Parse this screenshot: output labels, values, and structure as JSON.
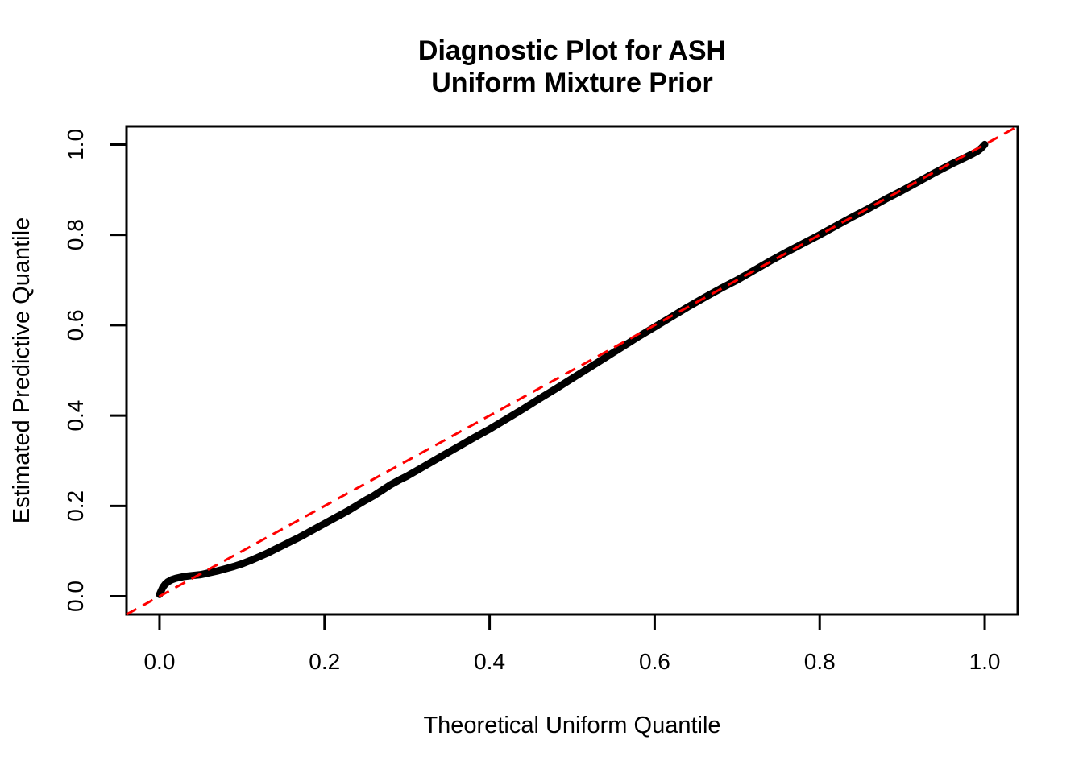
{
  "page": {
    "background_color": "#FFFFFF"
  },
  "chart_data": {
    "type": "scatter",
    "title_lines": [
      "Diagnostic Plot for ASH",
      "Uniform Mixture Prior"
    ],
    "xlabel": "Theoretical Uniform Quantile",
    "ylabel": "Estimated Predictive Quantile",
    "xlim": [
      -0.04,
      1.04
    ],
    "ylim": [
      -0.04,
      1.04
    ],
    "x_tick_values": [
      0.0,
      0.2,
      0.4,
      0.6,
      0.8,
      1.0
    ],
    "x_tick_labels": [
      "0.0",
      "0.2",
      "0.4",
      "0.6",
      "0.8",
      "1.0"
    ],
    "y_tick_values": [
      0.0,
      0.2,
      0.4,
      0.6,
      0.8,
      1.0
    ],
    "y_tick_labels": [
      "0.0",
      "0.2",
      "0.4",
      "0.6",
      "0.8",
      "1.0"
    ],
    "grid": false,
    "legend": "none",
    "series": [
      {
        "name": "estimated predictive quantile vs theoretical uniform quantile",
        "color": "#000000",
        "marker": "thick-point-chain",
        "points": [
          [
            0.0,
            0.004
          ],
          [
            0.002,
            0.012
          ],
          [
            0.004,
            0.02
          ],
          [
            0.007,
            0.027
          ],
          [
            0.01,
            0.032
          ],
          [
            0.015,
            0.037
          ],
          [
            0.02,
            0.04
          ],
          [
            0.03,
            0.044
          ],
          [
            0.04,
            0.046
          ],
          [
            0.05,
            0.048
          ],
          [
            0.06,
            0.052
          ],
          [
            0.07,
            0.056
          ],
          [
            0.08,
            0.061
          ],
          [
            0.09,
            0.066
          ],
          [
            0.1,
            0.072
          ],
          [
            0.11,
            0.079
          ],
          [
            0.12,
            0.087
          ],
          [
            0.13,
            0.095
          ],
          [
            0.14,
            0.104
          ],
          [
            0.15,
            0.113
          ],
          [
            0.16,
            0.122
          ],
          [
            0.17,
            0.131
          ],
          [
            0.18,
            0.141
          ],
          [
            0.19,
            0.151
          ],
          [
            0.2,
            0.161
          ],
          [
            0.21,
            0.171
          ],
          [
            0.22,
            0.181
          ],
          [
            0.23,
            0.191
          ],
          [
            0.24,
            0.202
          ],
          [
            0.25,
            0.213
          ],
          [
            0.26,
            0.223
          ],
          [
            0.27,
            0.235
          ],
          [
            0.28,
            0.247
          ],
          [
            0.29,
            0.257
          ],
          [
            0.3,
            0.266
          ],
          [
            0.32,
            0.287
          ],
          [
            0.34,
            0.308
          ],
          [
            0.36,
            0.329
          ],
          [
            0.38,
            0.35
          ],
          [
            0.4,
            0.37
          ],
          [
            0.42,
            0.392
          ],
          [
            0.44,
            0.414
          ],
          [
            0.46,
            0.437
          ],
          [
            0.48,
            0.459
          ],
          [
            0.5,
            0.482
          ],
          [
            0.52,
            0.505
          ],
          [
            0.54,
            0.528
          ],
          [
            0.56,
            0.551
          ],
          [
            0.58,
            0.574
          ],
          [
            0.6,
            0.596
          ],
          [
            0.62,
            0.618
          ],
          [
            0.64,
            0.64
          ],
          [
            0.66,
            0.661
          ],
          [
            0.68,
            0.681
          ],
          [
            0.7,
            0.7
          ],
          [
            0.72,
            0.721
          ],
          [
            0.74,
            0.742
          ],
          [
            0.76,
            0.762
          ],
          [
            0.78,
            0.781
          ],
          [
            0.8,
            0.8
          ],
          [
            0.82,
            0.82
          ],
          [
            0.84,
            0.84
          ],
          [
            0.86,
            0.859
          ],
          [
            0.88,
            0.879
          ],
          [
            0.9,
            0.898
          ],
          [
            0.92,
            0.918
          ],
          [
            0.94,
            0.938
          ],
          [
            0.96,
            0.957
          ],
          [
            0.975,
            0.97
          ],
          [
            0.985,
            0.979
          ],
          [
            0.992,
            0.986
          ],
          [
            0.996,
            0.992
          ],
          [
            1.0,
            1.0
          ]
        ]
      }
    ],
    "reference_line": {
      "slope": 1,
      "intercept": 0,
      "style": "dashed",
      "color": "#FF0000"
    },
    "colors": {
      "curve": "#000000",
      "reference": "#FF0000",
      "axis": "#000000",
      "text": "#000000"
    }
  }
}
